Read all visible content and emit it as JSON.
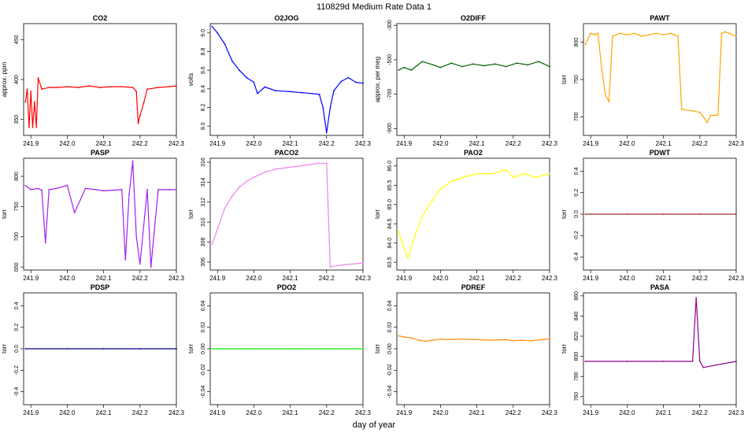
{
  "figure": {
    "title": "110829d   Medium Rate Data 1",
    "xlabel": "day of year"
  },
  "chart_data": [
    {
      "type": "line",
      "title": "CO2",
      "ylabel": "approx. ppm",
      "color": "#ff0000",
      "x_ticks": [
        "241.9",
        "242.0",
        "242.1",
        "242.2",
        "242.3"
      ],
      "y_ticks": [
        "350",
        "400",
        "450"
      ],
      "xlim": [
        241.88,
        242.3
      ],
      "ylim": [
        330,
        470
      ],
      "series": [
        {
          "x": [
            241.885,
            241.89,
            241.895,
            241.9,
            241.905,
            241.91,
            241.915,
            241.92,
            241.93,
            241.95,
            241.97,
            242.0,
            242.03,
            242.06,
            242.09,
            242.12,
            242.15,
            242.18,
            242.19,
            242.195,
            242.2,
            242.21,
            242.22,
            242.25,
            242.28,
            242.3
          ],
          "y": [
            372,
            388,
            340,
            385,
            340,
            372,
            340,
            402,
            388,
            390,
            390,
            391,
            390,
            392,
            390,
            391,
            391,
            390,
            385,
            345,
            355,
            370,
            388,
            390,
            391,
            392
          ]
        }
      ]
    },
    {
      "type": "line",
      "title": "O2JOG",
      "ylabel": "volts",
      "color": "#0000ff",
      "x_ticks": [
        "241.9",
        "242.0",
        "242.1",
        "242.2",
        "242.3"
      ],
      "y_ticks": [
        "8.0",
        "8.2",
        "8.4",
        "8.6",
        "8.8",
        "9.0"
      ],
      "xlim": [
        241.88,
        242.3
      ],
      "ylim": [
        7.9,
        9.1
      ],
      "series": [
        {
          "x": [
            241.885,
            241.9,
            241.92,
            241.94,
            241.96,
            241.98,
            242.0,
            242.01,
            242.03,
            242.06,
            242.1,
            242.13,
            242.16,
            242.18,
            242.19,
            242.2,
            242.21,
            242.22,
            242.24,
            242.26,
            242.28,
            242.3
          ],
          "y": [
            9.07,
            9.0,
            8.88,
            8.7,
            8.6,
            8.52,
            8.47,
            8.35,
            8.42,
            8.38,
            8.37,
            8.36,
            8.35,
            8.34,
            8.2,
            7.93,
            8.2,
            8.38,
            8.48,
            8.52,
            8.47,
            8.46
          ]
        }
      ]
    },
    {
      "type": "line",
      "title": "O2DIFF",
      "ylabel": "approx. per meg",
      "color": "#006400",
      "x_ticks": [
        "241.9",
        "242.0",
        "242.1",
        "242.2",
        "242.3"
      ],
      "y_ticks": [
        "-900",
        "-700",
        "-500",
        "-300"
      ],
      "xlim": [
        241.88,
        242.3
      ],
      "ylim": [
        -940,
        -290
      ],
      "series": [
        {
          "x": [
            241.885,
            241.9,
            241.92,
            241.95,
            241.98,
            242.0,
            242.03,
            242.06,
            242.09,
            242.12,
            242.15,
            242.18,
            242.21,
            242.24,
            242.27,
            242.3
          ],
          "y": [
            -560,
            -545,
            -560,
            -510,
            -530,
            -545,
            -520,
            -540,
            -525,
            -535,
            -525,
            -540,
            -520,
            -530,
            -510,
            -540
          ]
        }
      ]
    },
    {
      "type": "line",
      "title": "PAWT",
      "ylabel": "torr",
      "color": "#ffa500",
      "x_ticks": [
        "241.9",
        "242.0",
        "242.1",
        "242.2",
        "242.3"
      ],
      "y_ticks": [
        "700",
        "750",
        "800"
      ],
      "xlim": [
        241.88,
        242.3
      ],
      "ylim": [
        675,
        825
      ],
      "series": [
        {
          "x": [
            241.885,
            241.9,
            241.91,
            241.92,
            241.93,
            241.94,
            241.95,
            241.96,
            241.98,
            242.0,
            242.02,
            242.04,
            242.06,
            242.08,
            242.1,
            242.12,
            242.13,
            242.14,
            242.15,
            242.18,
            242.2,
            242.21,
            242.22,
            242.23,
            242.25,
            242.26,
            242.27,
            242.28,
            242.3
          ],
          "y": [
            797,
            812,
            810,
            812,
            765,
            730,
            720,
            808,
            812,
            810,
            812,
            808,
            810,
            812,
            810,
            812,
            810,
            808,
            710,
            708,
            706,
            700,
            692,
            702,
            702,
            812,
            814,
            812,
            808
          ]
        }
      ]
    },
    {
      "type": "line",
      "title": "PASP",
      "ylabel": "torr",
      "color": "#a020f0",
      "x_ticks": [
        "241.9",
        "242.0",
        "242.1",
        "242.2",
        "242.3"
      ],
      "y_ticks": [
        "650",
        "700",
        "750",
        "800"
      ],
      "xlim": [
        241.88,
        242.3
      ],
      "ylim": [
        645,
        830
      ],
      "series": [
        {
          "x": [
            241.885,
            241.9,
            241.92,
            241.93,
            241.94,
            241.95,
            241.97,
            242.0,
            242.02,
            242.05,
            242.08,
            242.1,
            242.15,
            242.16,
            242.17,
            242.18,
            242.19,
            242.2,
            242.22,
            242.23,
            242.25,
            242.28,
            242.3
          ],
          "y": [
            785,
            778,
            780,
            777,
            690,
            778,
            780,
            785,
            740,
            780,
            778,
            776,
            778,
            662,
            770,
            825,
            700,
            655,
            778,
            650,
            778,
            778,
            778
          ]
        }
      ]
    },
    {
      "type": "line",
      "title": "PACO2",
      "ylabel": "torr",
      "color": "#ee82ee",
      "x_ticks": [
        "241.9",
        "242.0",
        "242.1",
        "242.2",
        "242.3"
      ],
      "y_ticks": [
        "306",
        "308",
        "310",
        "312",
        "314",
        "316"
      ],
      "xlim": [
        241.88,
        242.3
      ],
      "ylim": [
        305.2,
        316.4
      ],
      "series": [
        {
          "x": [
            241.885,
            241.9,
            241.92,
            241.94,
            241.96,
            241.98,
            242.0,
            242.03,
            242.06,
            242.1,
            242.14,
            242.18,
            242.2,
            242.21,
            242.24,
            242.27,
            242.3
          ],
          "y": [
            307.8,
            309.3,
            311.4,
            312.6,
            313.5,
            314.1,
            314.5,
            315.0,
            315.3,
            315.5,
            315.7,
            315.9,
            315.9,
            305.5,
            305.7,
            305.8,
            305.9
          ]
        }
      ]
    },
    {
      "type": "line",
      "title": "PAO2",
      "ylabel": "torr",
      "color": "#ffff00",
      "x_ticks": [
        "241.9",
        "242.0",
        "242.1",
        "242.2",
        "242.3"
      ],
      "y_ticks": [
        "83.5",
        "84.0",
        "84.5",
        "85.0",
        "85.5",
        "86.0"
      ],
      "xlim": [
        241.88,
        242.3
      ],
      "ylim": [
        83.3,
        86.2
      ],
      "series": [
        {
          "x": [
            241.885,
            241.895,
            241.91,
            241.93,
            241.95,
            241.97,
            242.0,
            242.03,
            242.06,
            242.1,
            242.14,
            242.18,
            242.2,
            242.23,
            242.26,
            242.3
          ],
          "y": [
            84.3,
            84.0,
            83.6,
            84.2,
            84.7,
            85.0,
            85.4,
            85.6,
            85.7,
            85.8,
            85.8,
            85.9,
            85.7,
            85.8,
            85.7,
            85.8
          ]
        }
      ]
    },
    {
      "type": "line",
      "title": "PDWT",
      "ylabel": "torr",
      "color": "#a52a2a",
      "x_ticks": [
        "241.9",
        "242.0",
        "242.1",
        "242.2",
        "242.3"
      ],
      "y_ticks": [
        "-0.4",
        "-0.2",
        "0.0",
        "0.2",
        "0.4"
      ],
      "xlim": [
        241.88,
        242.3
      ],
      "ylim": [
        -0.52,
        0.52
      ],
      "series": [
        {
          "x": [
            241.885,
            242.0,
            242.1,
            242.2,
            242.3
          ],
          "y": [
            0.0,
            0.0,
            0.0,
            0.0,
            0.0
          ]
        }
      ]
    },
    {
      "type": "line",
      "title": "PDSP",
      "ylabel": "torr",
      "color": "#000080",
      "x_ticks": [
        "241.9",
        "242.0",
        "242.1",
        "242.2",
        "242.3"
      ],
      "y_ticks": [
        "-0.4",
        "-0.2",
        "0.0",
        "0.2",
        "0.4"
      ],
      "xlim": [
        241.88,
        242.3
      ],
      "ylim": [
        -0.52,
        0.52
      ],
      "series": [
        {
          "x": [
            241.885,
            242.0,
            242.1,
            242.2,
            242.3
          ],
          "y": [
            0.0,
            0.0,
            0.0,
            0.0,
            0.0
          ]
        }
      ]
    },
    {
      "type": "line",
      "title": "PDO2",
      "ylabel": "torr",
      "color": "#00ff00",
      "x_ticks": [
        "241.9",
        "242.0",
        "242.1",
        "242.2",
        "242.3"
      ],
      "y_ticks": [
        "-0.04",
        "-0.02",
        "0.00",
        "0.02",
        "0.04"
      ],
      "xlim": [
        241.88,
        242.3
      ],
      "ylim": [
        -0.052,
        0.052
      ],
      "series": [
        {
          "x": [
            241.885,
            242.0,
            242.1,
            242.2,
            242.3
          ],
          "y": [
            0.0,
            0.0,
            0.0,
            0.0,
            0.0
          ]
        }
      ]
    },
    {
      "type": "line",
      "title": "PDREF",
      "ylabel": "torr",
      "color": "#ff8c00",
      "x_ticks": [
        "241.9",
        "242.0",
        "242.1",
        "242.2",
        "242.3"
      ],
      "y_ticks": [
        "-0.04",
        "-0.02",
        "0.00",
        "0.02",
        "0.04"
      ],
      "xlim": [
        241.88,
        242.3
      ],
      "ylim": [
        -0.052,
        0.052
      ],
      "series": [
        {
          "x": [
            241.885,
            241.9,
            241.92,
            241.94,
            241.96,
            241.98,
            242.0,
            242.03,
            242.06,
            242.1,
            242.14,
            242.18,
            242.2,
            242.22,
            242.25,
            242.28,
            242.3
          ],
          "y": [
            0.012,
            0.011,
            0.01,
            0.008,
            0.007,
            0.008,
            0.009,
            0.0085,
            0.009,
            0.0085,
            0.008,
            0.0085,
            0.0075,
            0.008,
            0.0075,
            0.0085,
            0.009
          ]
        }
      ]
    },
    {
      "type": "line",
      "title": "PASA",
      "ylabel": "torr",
      "color": "#8b008b",
      "x_ticks": [
        "241.9",
        "242.0",
        "242.1",
        "242.2",
        "242.3"
      ],
      "y_ticks": [
        "760",
        "780",
        "800",
        "820",
        "840",
        "860"
      ],
      "xlim": [
        241.88,
        242.3
      ],
      "ylim": [
        752,
        863
      ],
      "series": [
        {
          "x": [
            241.885,
            242.0,
            242.1,
            242.18,
            242.19,
            242.2,
            242.21,
            242.3
          ],
          "y": [
            795,
            795,
            795,
            795,
            858,
            795,
            789,
            795
          ]
        }
      ]
    }
  ]
}
